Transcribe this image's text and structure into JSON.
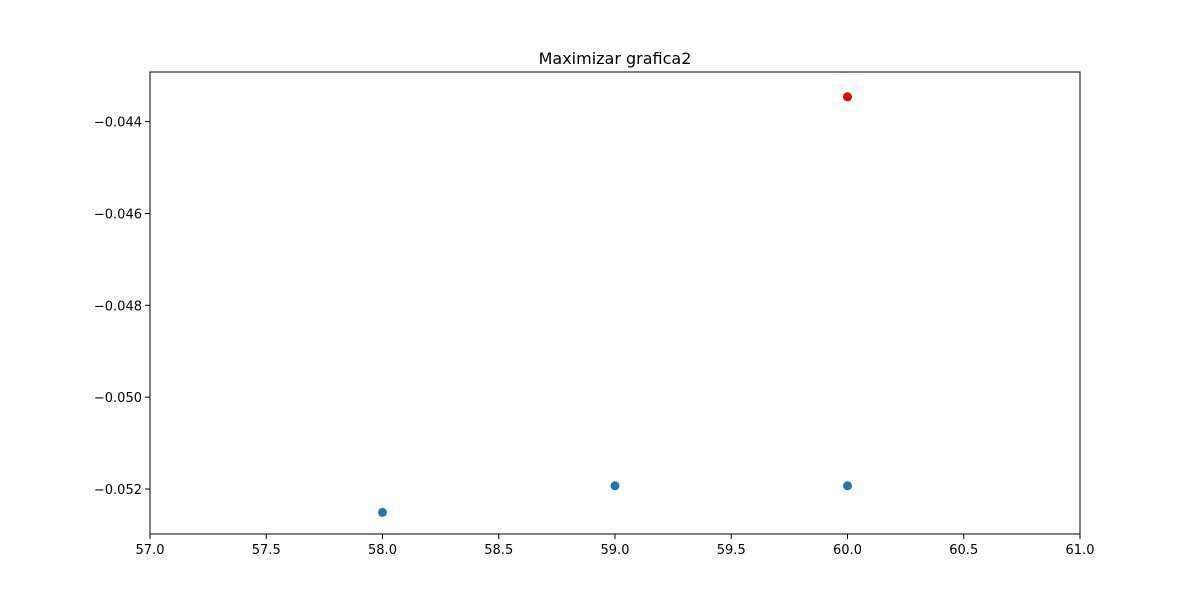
{
  "chart_data": {
    "type": "scatter",
    "title": "Maximizar grafica2",
    "xlabel": "",
    "ylabel": "",
    "xlim": [
      57.0,
      61.0
    ],
    "ylim": [
      -0.05298,
      -0.04292
    ],
    "x_ticks": [
      57.0,
      57.5,
      58.0,
      58.5,
      59.0,
      59.5,
      60.0,
      60.5,
      61.0
    ],
    "x_tick_labels": [
      "57.0",
      "57.5",
      "58.0",
      "58.5",
      "59.0",
      "59.5",
      "60.0",
      "60.5",
      "61.0"
    ],
    "y_ticks": [
      -0.044,
      -0.046,
      -0.048,
      -0.05,
      -0.052
    ],
    "y_tick_labels": [
      "−0.044",
      "−0.046",
      "−0.048",
      "−0.050",
      "−0.052"
    ],
    "grid": false,
    "series": [
      {
        "color": "#1f77b4",
        "points": [
          {
            "x": 58.0,
            "y": -0.05251
          },
          {
            "x": 59.0,
            "y": -0.05193
          },
          {
            "x": 60.0,
            "y": -0.05193
          }
        ]
      },
      {
        "color": "#e8000b",
        "points": [
          {
            "x": 60.0,
            "y": -0.04346
          }
        ]
      }
    ]
  }
}
